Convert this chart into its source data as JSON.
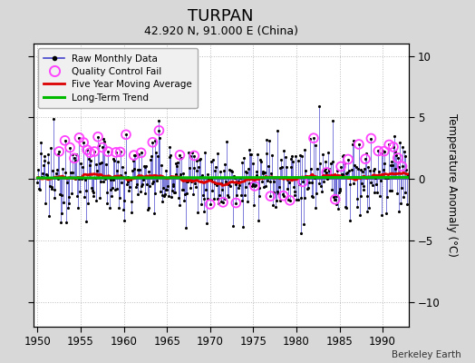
{
  "title": "TURPAN",
  "subtitle": "42.920 N, 91.000 E (China)",
  "ylabel": "Temperature Anomaly (°C)",
  "xlim": [
    1949.5,
    1993.0
  ],
  "ylim": [
    -12,
    11
  ],
  "yticks": [
    -10,
    -5,
    0,
    5,
    10
  ],
  "xticks": [
    1950,
    1955,
    1960,
    1965,
    1970,
    1975,
    1980,
    1985,
    1990
  ],
  "bg_color": "#d8d8d8",
  "plot_bg_color": "#ffffff",
  "line_color": "#4444cc",
  "marker_color": "#000000",
  "qc_color": "#ff44ff",
  "moving_avg_color": "#dd0000",
  "trend_color": "#00bb00",
  "watermark": "Berkeley Earth",
  "seed": 12345,
  "start_year": 1950.0,
  "end_year": 1992.917,
  "n_months": 516
}
